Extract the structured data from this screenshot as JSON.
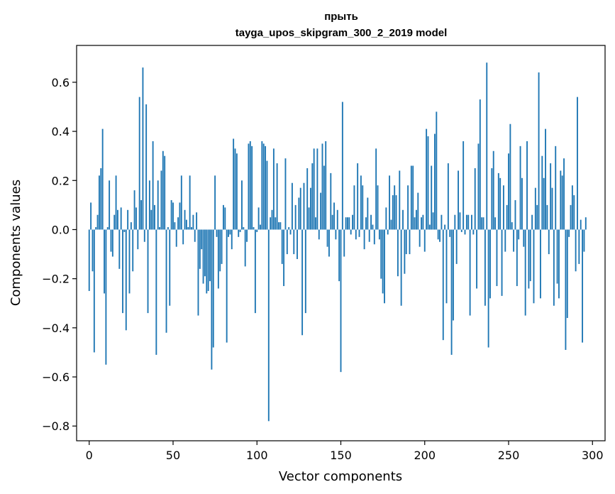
{
  "chart_data": {
    "type": "bar",
    "title": "прыть",
    "subtitle": "tayga_upos_skipgram_300_2_2019 model",
    "xlabel": "Vector components",
    "ylabel": "Components values",
    "xlim": [
      -7.5,
      307.5
    ],
    "ylim": [
      -0.86,
      0.75
    ],
    "xticks": [
      0,
      50,
      100,
      150,
      200,
      250,
      300
    ],
    "yticks": [
      -0.8,
      -0.6,
      -0.4,
      -0.2,
      0.0,
      0.2,
      0.4,
      0.6
    ],
    "ytick_labels": [
      "−0.8",
      "−0.6",
      "−0.4",
      "−0.2",
      "0.0",
      "0.2",
      "0.4",
      "0.6"
    ],
    "bar_color": "#1f77b4",
    "grid": false,
    "values": [
      -0.25,
      0.11,
      -0.17,
      -0.5,
      0.01,
      0.06,
      0.22,
      0.25,
      0.41,
      -0.26,
      -0.55,
      0.01,
      0.2,
      -0.09,
      -0.11,
      0.06,
      0.22,
      0.08,
      -0.16,
      0.09,
      -0.34,
      -0.01,
      -0.41,
      0.08,
      -0.26,
      0.03,
      -0.17,
      0.16,
      0.09,
      -0.08,
      0.54,
      0.12,
      0.66,
      -0.05,
      0.51,
      -0.34,
      0.2,
      0.08,
      0.36,
      0.1,
      -0.51,
      0.2,
      0.01,
      0.24,
      0.32,
      0.3,
      -0.42,
      0.01,
      -0.31,
      0.12,
      0.11,
      0.03,
      -0.07,
      0.05,
      0.11,
      0.22,
      -0.06,
      0.08,
      0.04,
      0.01,
      0.22,
      0.01,
      0.06,
      -0.05,
      0.07,
      -0.35,
      -0.16,
      -0.08,
      -0.22,
      -0.19,
      -0.26,
      -0.25,
      -0.21,
      -0.57,
      -0.48,
      0.22,
      -0.03,
      -0.24,
      -0.17,
      -0.14,
      0.1,
      0.09,
      -0.46,
      -0.03,
      -0.02,
      -0.08,
      0.37,
      0.33,
      0.31,
      -0.03,
      -0.01,
      0.2,
      0.01,
      -0.15,
      -0.05,
      0.35,
      0.36,
      0.34,
      0.01,
      -0.34,
      -0.01,
      0.09,
      0.02,
      0.36,
      0.35,
      0.34,
      0.28,
      -0.78,
      0.05,
      0.08,
      0.33,
      0.05,
      0.27,
      0.03,
      0.03,
      -0.14,
      -0.23,
      0.29,
      -0.1,
      0.01,
      -0.02,
      0.19,
      -0.1,
      0.1,
      -0.12,
      0.13,
      0.17,
      -0.43,
      0.19,
      -0.34,
      0.25,
      0.09,
      0.17,
      0.27,
      0.33,
      0.05,
      0.33,
      -0.04,
      0.15,
      0.35,
      0.26,
      0.36,
      -0.07,
      -0.11,
      0.23,
      0.06,
      0.11,
      -0.04,
      0.08,
      -0.21,
      -0.58,
      0.52,
      -0.11,
      0.05,
      0.05,
      0.05,
      -0.02,
      0.06,
      0.18,
      -0.04,
      0.27,
      -0.03,
      0.22,
      0.18,
      -0.08,
      0.05,
      0.13,
      -0.05,
      0.06,
      0.02,
      -0.06,
      0.33,
      0.18,
      -0.04,
      -0.2,
      -0.26,
      -0.3,
      0.09,
      -0.02,
      0.22,
      0.04,
      0.14,
      0.18,
      0.14,
      -0.19,
      0.24,
      -0.31,
      0.08,
      -0.18,
      -0.1,
      0.18,
      -0.1,
      0.26,
      0.26,
      0.05,
      0.08,
      0.15,
      -0.07,
      0.05,
      0.06,
      -0.09,
      0.41,
      0.38,
      0.02,
      0.26,
      0.07,
      0.39,
      0.48,
      -0.04,
      -0.05,
      0.06,
      -0.45,
      0.02,
      -0.3,
      0.27,
      -0.03,
      -0.51,
      -0.37,
      0.06,
      -0.14,
      0.24,
      0.07,
      -0.01,
      0.36,
      -0.02,
      0.06,
      0.06,
      -0.35,
      0.06,
      -0.02,
      0.25,
      -0.24,
      0.35,
      0.53,
      0.05,
      0.05,
      -0.31,
      0.68,
      -0.48,
      -0.28,
      0.25,
      0.32,
      0.05,
      -0.23,
      0.23,
      0.21,
      -0.27,
      0.18,
      -0.09,
      0.1,
      0.31,
      0.43,
      0.03,
      -0.09,
      0.12,
      -0.23,
      -0.04,
      0.34,
      0.21,
      -0.07,
      -0.35,
      0.36,
      -0.24,
      -0.21,
      0.06,
      -0.3,
      0.17,
      0.1,
      0.64,
      -0.28,
      0.3,
      0.21,
      0.41,
      0.1,
      -0.1,
      0.27,
      0.17,
      -0.31,
      0.34,
      -0.22,
      -0.28,
      0.24,
      0.22,
      0.29,
      -0.49,
      -0.36,
      -0.03,
      0.1,
      0.18,
      0.14,
      -0.17,
      0.54,
      -0.14,
      0.04,
      -0.46,
      -0.09,
      0.05
    ]
  }
}
